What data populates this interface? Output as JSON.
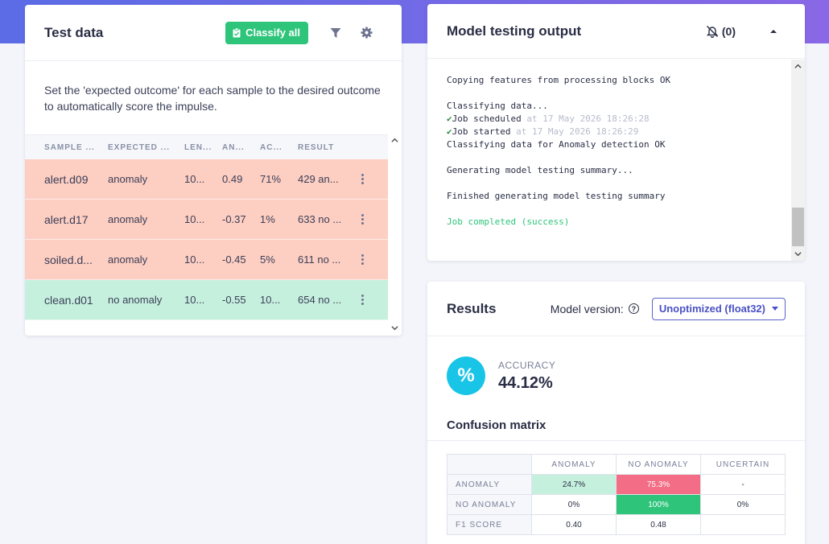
{
  "test_data": {
    "title": "Test data",
    "classify_all_label": "Classify all",
    "description": "Set the 'expected outcome' for each sample to the desired outcome to automatically score the impulse.",
    "columns": [
      "SAMPLE ...",
      "EXPECTED ...",
      "LEN...",
      "AN...",
      "AC...",
      "RESULT"
    ],
    "rows": [
      {
        "sample": "alert.d09",
        "expected": "anomaly",
        "length": "10...",
        "anomaly": "0.49",
        "accuracy": "71%",
        "result": "429 an...",
        "status": "bad"
      },
      {
        "sample": "alert.d17",
        "expected": "anomaly",
        "length": "10...",
        "anomaly": "-0.37",
        "accuracy": "1%",
        "result": "633 no ...",
        "status": "bad"
      },
      {
        "sample": "soiled.d...",
        "expected": "anomaly",
        "length": "10...",
        "anomaly": "-0.45",
        "accuracy": "5%",
        "result": "611 no ...",
        "status": "bad"
      },
      {
        "sample": "clean.d01",
        "expected": "no anomaly",
        "length": "10...",
        "anomaly": "-0.55",
        "accuracy": "10...",
        "result": "654 no ...",
        "status": "good"
      }
    ]
  },
  "output": {
    "title": "Model testing output",
    "notification_count": "(0)",
    "log": [
      {
        "text": "Copying features from processing blocks OK"
      },
      {
        "text": ""
      },
      {
        "text": "Classifying data..."
      },
      {
        "check": true,
        "text": "Job scheduled",
        "muted": " at 17 May 2026 18:26:28"
      },
      {
        "check": true,
        "text": "Job started",
        "muted": " at 17 May 2026 18:26:29"
      },
      {
        "text": "Classifying data for Anomaly detection OK"
      },
      {
        "text": ""
      },
      {
        "text": "Generating model testing summary..."
      },
      {
        "text": ""
      },
      {
        "text": "Finished generating model testing summary"
      },
      {
        "text": ""
      },
      {
        "text": "Job completed (success)",
        "ok": true
      }
    ]
  },
  "results": {
    "title": "Results",
    "model_version_label": "Model version:",
    "model_version_value": "Unoptimized (float32)",
    "accuracy_label": "ACCURACY",
    "accuracy_value": "44.12%",
    "accuracy_icon": "%",
    "confusion_title": "Confusion matrix",
    "matrix": {
      "col_headers": [
        "ANOMALY",
        "NO ANOMALY",
        "UNCERTAIN"
      ],
      "rows": [
        {
          "label": "ANOMALY",
          "cells": [
            "24.7%",
            "75.3%",
            "-"
          ],
          "colors": [
            "#c6f0de",
            "#f26d85",
            ""
          ]
        },
        {
          "label": "NO ANOMALY",
          "cells": [
            "0%",
            "100%",
            "0%"
          ],
          "colors": [
            "",
            "#2ec47a",
            ""
          ]
        },
        {
          "label": "F1 SCORE",
          "cells": [
            "0.40",
            "0.48",
            ""
          ],
          "colors": [
            "",
            "",
            ""
          ]
        }
      ]
    }
  },
  "colors": {
    "accent_green": "#2ec47a",
    "row_bad": "#fdcec2",
    "row_good": "#c6f0de",
    "accuracy_circle": "#18c5e6",
    "header_gradient": "#6a6ae6"
  }
}
